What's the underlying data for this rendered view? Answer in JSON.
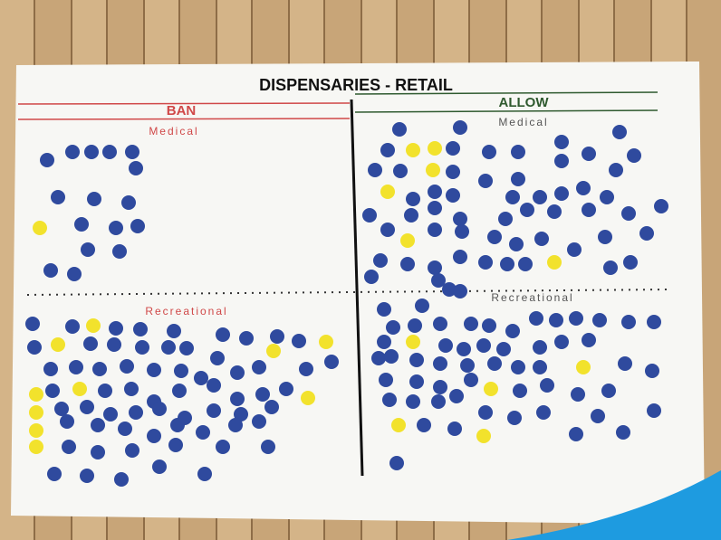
{
  "poster": {
    "title": "DISPENSARIES - RETAIL",
    "ban": {
      "heading": "BAN",
      "top_label": "Medical",
      "bottom_label": "Recreational"
    },
    "allow": {
      "heading": "ALLOW",
      "top_label": "Medical",
      "bottom_label": "Recreational"
    }
  }
}
